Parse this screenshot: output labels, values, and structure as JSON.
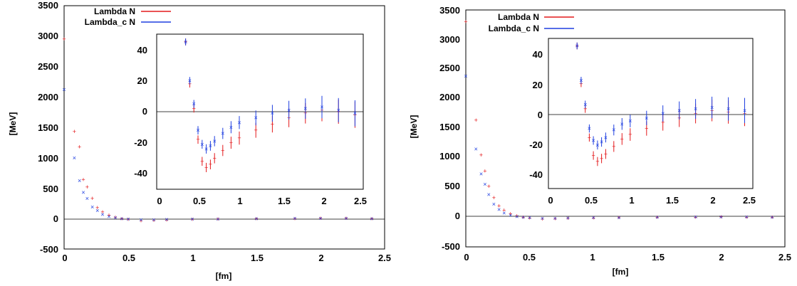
{
  "figure": {
    "panels": [
      {
        "legend": [
          "Lambda N",
          "Lambda_c N"
        ],
        "xlabel": "[fm]",
        "ylabel": "[MeV]",
        "main_xticks": [
          "0",
          "0.5",
          "1",
          "1.5",
          "2",
          "2.5"
        ],
        "main_yticks": [
          "-500",
          "0",
          "500",
          "1000",
          "1500",
          "2000",
          "2500",
          "3000",
          "3500"
        ],
        "inset_xticks": [
          "0",
          "0.5",
          "1",
          "1.5",
          "2",
          "2.5"
        ],
        "inset_yticks": [
          "-40",
          "-20",
          "0",
          "20",
          "40"
        ]
      },
      {
        "legend": [
          "Lambda N",
          "Lambda_c N"
        ],
        "xlabel": "[fm]",
        "ylabel": "[MeV]",
        "main_xticks": [
          "0",
          "0.5",
          "1",
          "1.5",
          "2",
          "2.5"
        ],
        "main_yticks": [
          "-500",
          "0",
          "500",
          "1000",
          "1500",
          "2000",
          "2500",
          "3000",
          "3500"
        ],
        "inset_xticks": [
          "0",
          "0.5",
          "1",
          "1.5",
          "2",
          "2.5"
        ],
        "inset_yticks": [
          "-40",
          "-20",
          "0",
          "20",
          "40"
        ]
      }
    ]
  },
  "chart_data": [
    {
      "type": "scatter",
      "xlabel": "[fm]",
      "ylabel": "[MeV]",
      "xlim": [
        0,
        2.5
      ],
      "ylim": [
        -500,
        3500
      ],
      "colors": {
        "Lambda N": "#e41a1c",
        "Lambda_c N": "#1f3fe0"
      },
      "series": [
        {
          "name": "Lambda N",
          "x": [
            0.0,
            0.08,
            0.12,
            0.15,
            0.18,
            0.22,
            0.26,
            0.3,
            0.35,
            0.4,
            0.45,
            0.5,
            0.6,
            0.7,
            0.8,
            1.0,
            1.2,
            1.5,
            1.8,
            2.0,
            2.2,
            2.4
          ],
          "y": [
            2950,
            1430,
            1180,
            640,
            520,
            330,
            180,
            110,
            55,
            20,
            0,
            -15,
            -36,
            -30,
            -24,
            -17,
            -10,
            -5,
            0,
            2,
            1,
            0
          ]
        },
        {
          "name": "Lambda_c N",
          "x": [
            0.0,
            0.08,
            0.12,
            0.15,
            0.18,
            0.22,
            0.26,
            0.3,
            0.35,
            0.4,
            0.45,
            0.5,
            0.6,
            0.7,
            0.8,
            1.0,
            1.2,
            1.5,
            1.8,
            2.0,
            2.2,
            2.4
          ],
          "y": [
            2120,
            1000,
            620,
            430,
            330,
            190,
            130,
            70,
            35,
            12,
            0,
            -10,
            -23,
            -20,
            -15,
            -10,
            -6,
            -2,
            2,
            3,
            1,
            0
          ]
        }
      ],
      "inset": {
        "xlim": [
          0,
          2.5
        ],
        "ylim": [
          -50,
          50
        ],
        "series": [
          {
            "name": "Lambda N",
            "x": [
              0.35,
              0.4,
              0.45,
              0.5,
              0.55,
              0.6,
              0.65,
              0.7,
              0.8,
              0.9,
              1.0,
              1.2,
              1.4,
              1.6,
              1.8,
              2.0,
              2.2,
              2.4
            ],
            "y": [
              45,
              18,
              2,
              -18,
              -32,
              -36,
              -34,
              -30,
              -25,
              -20,
              -17,
              -12,
              -8,
              -4,
              -1,
              1,
              0,
              -2
            ]
          },
          {
            "name": "Lambda_c N",
            "x": [
              0.35,
              0.4,
              0.45,
              0.5,
              0.55,
              0.6,
              0.65,
              0.7,
              0.8,
              0.9,
              1.0,
              1.2,
              1.4,
              1.6,
              1.8,
              2.0,
              2.2,
              2.4
            ],
            "y": [
              45,
              20,
              5,
              -12,
              -21,
              -24,
              -22,
              -19,
              -14,
              -10,
              -7,
              -4,
              -1,
              1,
              2,
              3,
              1,
              -1
            ]
          }
        ]
      }
    },
    {
      "type": "scatter",
      "xlabel": "[fm]",
      "ylabel": "[MeV]",
      "xlim": [
        0,
        2.5
      ],
      "ylim": [
        -500,
        3500
      ],
      "colors": {
        "Lambda N": "#e41a1c",
        "Lambda_c N": "#1f3fe0"
      },
      "series": [
        {
          "name": "Lambda N",
          "x": [
            0.0,
            0.08,
            0.12,
            0.15,
            0.18,
            0.22,
            0.26,
            0.3,
            0.35,
            0.4,
            0.45,
            0.5,
            0.6,
            0.7,
            0.8,
            1.0,
            1.2,
            1.5,
            1.8,
            2.0,
            2.2,
            2.4
          ],
          "y": [
            3300,
            1640,
            1050,
            780,
            520,
            330,
            190,
            120,
            60,
            25,
            0,
            -15,
            -30,
            -28,
            -22,
            -15,
            -10,
            -4,
            0,
            2,
            1,
            0
          ]
        },
        {
          "name": "Lambda_c N",
          "x": [
            0.0,
            0.08,
            0.12,
            0.15,
            0.18,
            0.22,
            0.26,
            0.3,
            0.35,
            0.4,
            0.45,
            0.5,
            0.6,
            0.7,
            0.8,
            1.0,
            1.2,
            1.5,
            1.8,
            2.0,
            2.2,
            2.4
          ],
          "y": [
            2380,
            1150,
            730,
            560,
            380,
            220,
            130,
            70,
            35,
            12,
            0,
            -10,
            -20,
            -18,
            -13,
            -8,
            -5,
            -1,
            2,
            3,
            2,
            1
          ]
        }
      ],
      "inset": {
        "xlim": [
          0,
          2.5
        ],
        "ylim": [
          -50,
          50
        ],
        "series": [
          {
            "name": "Lambda N",
            "x": [
              0.35,
              0.4,
              0.45,
              0.5,
              0.55,
              0.6,
              0.65,
              0.7,
              0.8,
              0.9,
              1.0,
              1.2,
              1.4,
              1.6,
              1.8,
              2.0,
              2.2,
              2.4
            ],
            "y": [
              45,
              20,
              3,
              -16,
              -28,
              -32,
              -30,
              -27,
              -22,
              -17,
              -14,
              -10,
              -6,
              -3,
              0,
              2,
              1,
              0
            ]
          },
          {
            "name": "Lambda_c N",
            "x": [
              0.35,
              0.4,
              0.45,
              0.5,
              0.55,
              0.6,
              0.65,
              0.7,
              0.8,
              0.9,
              1.0,
              1.2,
              1.4,
              1.6,
              1.8,
              2.0,
              2.2,
              2.4
            ],
            "y": [
              45,
              22,
              6,
              -10,
              -18,
              -21,
              -19,
              -16,
              -11,
              -7,
              -5,
              -3,
              0,
              2,
              3,
              4,
              3,
              2
            ]
          }
        ]
      }
    }
  ]
}
